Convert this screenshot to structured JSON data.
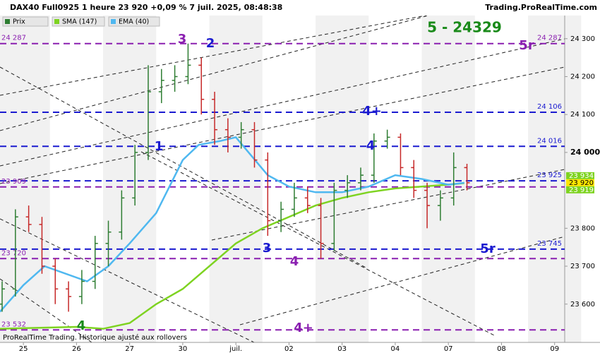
{
  "chart_data": {
    "type": "ohlc",
    "title": "DAX40 Full0925 1 heure 23 920 +0,09 % 7 juil. 2025, 08:48:38",
    "source": "Trading.ProRealTime.com",
    "footer": "ProRealTime Trading. Historique ajusté aux rollovers",
    "xlim": [
      -0.44,
      10.19
    ],
    "ylim": [
      23499,
      24361
    ],
    "xticks": [
      {
        "value": 0,
        "label": "25"
      },
      {
        "value": 1,
        "label": "26"
      },
      {
        "value": 2,
        "label": "27"
      },
      {
        "value": 3,
        "label": "30"
      },
      {
        "value": 4,
        "label": "juil."
      },
      {
        "value": 5,
        "label": "02"
      },
      {
        "value": 6,
        "label": "03"
      },
      {
        "value": 7,
        "label": "04"
      },
      {
        "value": 8,
        "label": "07"
      },
      {
        "value": 9,
        "label": "08"
      },
      {
        "value": 10,
        "label": "09"
      }
    ],
    "yticks": [
      {
        "value": 24300,
        "label": "24 300"
      },
      {
        "value": 24200,
        "label": "24 200"
      },
      {
        "value": 24100,
        "label": "24 100"
      },
      {
        "value": 24000,
        "label": "24 000"
      },
      {
        "value": 23800,
        "label": "23 800"
      },
      {
        "value": 23700,
        "label": "23 700"
      },
      {
        "value": 23600,
        "label": "23 600"
      }
    ],
    "price": {
      "name": "Prix",
      "color_up": "#2e7d32",
      "color_down": "#c62828",
      "x": [
        -0.4,
        -0.15,
        0.1,
        0.35,
        0.6,
        0.85,
        1.1,
        1.35,
        1.6,
        1.85,
        2.1,
        2.35,
        2.6,
        2.85,
        3.1,
        3.35,
        3.6,
        3.85,
        4.1,
        4.35,
        4.6,
        4.85,
        5.1,
        5.35,
        5.6,
        5.85,
        6.1,
        6.35,
        6.6,
        6.85,
        7.1,
        7.35,
        7.6,
        7.85,
        8.1,
        8.35
      ],
      "open": [
        23600,
        23640,
        23830,
        23810,
        23700,
        23640,
        23620,
        23660,
        23760,
        23790,
        23880,
        24000,
        24160,
        24190,
        24200,
        24230,
        24140,
        24060,
        24040,
        24060,
        23980,
        23820,
        23850,
        23880,
        23860,
        23760,
        23900,
        23920,
        23940,
        24030,
        24040,
        23960,
        23900,
        23860,
        23880,
        23960
      ],
      "high": [
        23660,
        23850,
        23860,
        23830,
        23720,
        23660,
        23690,
        23780,
        23820,
        23900,
        24020,
        24230,
        24220,
        24230,
        24287,
        24250,
        24160,
        24090,
        24080,
        24080,
        24000,
        23870,
        23920,
        23910,
        23880,
        23920,
        23940,
        23960,
        24050,
        24060,
        24050,
        23980,
        23920,
        23900,
        24000,
        23970
      ],
      "low": [
        23580,
        23620,
        23790,
        23680,
        23600,
        23580,
        23600,
        23640,
        23700,
        23770,
        23860,
        23980,
        24130,
        24160,
        24180,
        24100,
        24020,
        24000,
        24010,
        23960,
        23780,
        23790,
        23830,
        23840,
        23720,
        23740,
        23880,
        23900,
        23920,
        24010,
        23940,
        23880,
        23800,
        23820,
        23860,
        23900
      ],
      "close": [
        23640,
        23830,
        23810,
        23700,
        23640,
        23620,
        23660,
        23760,
        23790,
        23880,
        24000,
        24160,
        24190,
        24200,
        24230,
        24140,
        24060,
        24040,
        24060,
        23980,
        23820,
        23850,
        23880,
        23860,
        23760,
        23900,
        23920,
        23940,
        24030,
        24040,
        23960,
        23900,
        23860,
        23880,
        23960,
        23920
      ]
    },
    "series": [
      {
        "name": "SMA (147)",
        "color": "#7ed321",
        "x": [
          -0.44,
          1.0,
          1.5,
          2.0,
          2.5,
          3.0,
          3.5,
          4.0,
          4.5,
          5.0,
          5.5,
          6.0,
          6.5,
          7.0,
          7.5,
          8.0,
          8.3
        ],
        "values": [
          23535,
          23540,
          23535,
          23550,
          23600,
          23640,
          23700,
          23760,
          23800,
          23830,
          23860,
          23880,
          23895,
          23905,
          23910,
          23915,
          23919
        ]
      },
      {
        "name": "EMA (40)",
        "color": "#4fb8f0",
        "x": [
          -0.44,
          0,
          0.4,
          1.2,
          1.6,
          2.0,
          2.5,
          3.0,
          3.3,
          3.7,
          4.0,
          4.3,
          4.6,
          5.0,
          5.5,
          6.0,
          6.5,
          7.0,
          7.5,
          8.0,
          8.3
        ],
        "values": [
          23580,
          23650,
          23700,
          23660,
          23700,
          23760,
          23840,
          23980,
          24020,
          24030,
          24040,
          23990,
          23940,
          23910,
          23895,
          23895,
          23910,
          23940,
          23930,
          23915,
          23920
        ]
      }
    ],
    "levels": [
      {
        "value": 24287,
        "label": "24 287",
        "color": "#8a1fb0",
        "side": "both"
      },
      {
        "value": 24106,
        "label": "24 106",
        "color": "#1a1ad0",
        "side": "right"
      },
      {
        "value": 24016,
        "label": "24 016",
        "color": "#1a1ad0",
        "side": "right"
      },
      {
        "value": 23925,
        "label": "23 925",
        "color": "#1a1ad0",
        "side": "right"
      },
      {
        "value": 23909,
        "label": "23 909",
        "color": "#8a1fb0",
        "side": "left"
      },
      {
        "value": 23745,
        "label": "23 745",
        "color": "#1a1ad0",
        "side": "right"
      },
      {
        "value": 23720,
        "label": "23 720",
        "color": "#8a1fb0",
        "side": "left"
      },
      {
        "value": 23532,
        "label": "23 532",
        "color": "#8a1fb0",
        "side": "left"
      }
    ],
    "price_tags": [
      {
        "value": 23934,
        "label": "23 934",
        "color": "#7ed321"
      },
      {
        "value": 23920,
        "label": "23 920",
        "color": "#ffe600"
      },
      {
        "value": 23919,
        "label": "23 919",
        "color": "#7ed321"
      }
    ],
    "annotations": [
      {
        "text": "5 - 24329",
        "color": "#1a8a1a"
      },
      {
        "text": "3",
        "color": "#8a1fb0"
      },
      {
        "text": "2",
        "color": "#1a1ad0"
      },
      {
        "text": "1",
        "color": "#1a1ad0"
      },
      {
        "text": "4+",
        "color": "#1a1ad0"
      },
      {
        "text": "4",
        "color": "#1a1ad0"
      },
      {
        "text": "3",
        "color": "#1a1ad0"
      },
      {
        "text": "4",
        "color": "#8a1fb0"
      },
      {
        "text": "5r",
        "color": "#8a1fb0"
      },
      {
        "text": "5r",
        "color": "#1a1ad0"
      },
      {
        "text": "4",
        "color": "#1a8a1a"
      },
      {
        "text": "4+",
        "color": "#8a1fb0"
      }
    ]
  }
}
